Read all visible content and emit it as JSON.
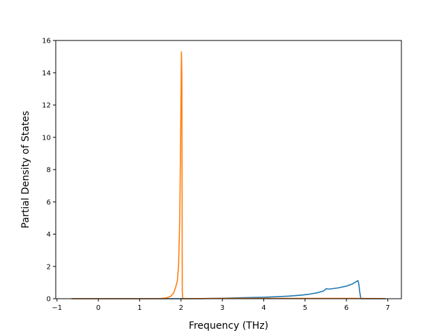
{
  "chart_data": {
    "type": "line",
    "title": "",
    "xlabel": "Frequency (THz)",
    "ylabel": "Partial Density of States",
    "xlim": [
      -1.03,
      7.33
    ],
    "ylim": [
      0,
      16
    ],
    "xticks": [
      -1,
      0,
      1,
      2,
      3,
      4,
      5,
      6,
      7
    ],
    "yticks": [
      0,
      2,
      4,
      6,
      8,
      10,
      12,
      14,
      16
    ],
    "grid": false,
    "legend": "none",
    "series": [
      {
        "color": "#1f77b4",
        "x": [
          -0.65,
          0.0,
          1.0,
          2.0,
          2.5,
          3.0,
          3.5,
          4.0,
          4.3,
          4.6,
          4.9,
          5.1,
          5.3,
          5.45,
          5.5,
          5.52,
          5.55,
          5.6,
          5.8,
          6.0,
          6.15,
          6.25,
          6.28,
          6.3,
          6.32,
          6.35,
          6.95
        ],
        "y": [
          0,
          0,
          0,
          0,
          0.01,
          0.03,
          0.06,
          0.09,
          0.12,
          0.16,
          0.22,
          0.28,
          0.37,
          0.48,
          0.6,
          0.62,
          0.6,
          0.6,
          0.67,
          0.78,
          0.92,
          1.08,
          1.12,
          0.9,
          0.45,
          0.0,
          0
        ]
      },
      {
        "color": "#ff7f0e",
        "x": [
          -0.65,
          0.0,
          1.0,
          1.5,
          1.65,
          1.75,
          1.82,
          1.87,
          1.91,
          1.94,
          1.97,
          1.99,
          2.01,
          2.02,
          2.03,
          2.04,
          2.05,
          2.5,
          3.0,
          4.0,
          5.0,
          6.0,
          6.95
        ],
        "y": [
          0,
          0,
          0,
          0.01,
          0.05,
          0.15,
          0.35,
          0.7,
          1.1,
          2.0,
          5.0,
          10.0,
          15.3,
          14.0,
          0.5,
          0.05,
          0.0,
          0.01,
          0.02,
          0.02,
          0.02,
          0.02,
          0.01
        ]
      }
    ]
  }
}
